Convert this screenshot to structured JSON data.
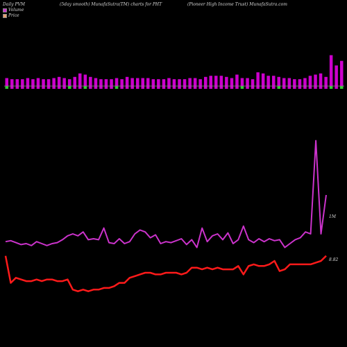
{
  "header": {
    "left": "Daily PVM",
    "center_left": "(5day smooth) MunafaSutra(TM) charts for PHT",
    "center_right": "(Pioneer High Income   Trust) MunafaSutra.com"
  },
  "legend": {
    "volume_label": "Volume",
    "price_label": "Price",
    "volume_color": "#cc33cc",
    "price_color": "#e8a070"
  },
  "chart_data": {
    "type": "line",
    "colors": {
      "volume_line": "#cc33cc",
      "price_line": "#ff1a1a",
      "bar_up": "#cc00cc",
      "bar_down": "#33cc33",
      "baseline": "#888888"
    },
    "right_labels": {
      "volume_tick": "1M",
      "price_tick": "8.82"
    },
    "volume_tick_value": 1000000,
    "price_tick_value": 8.82,
    "bars": {
      "values": [
        7,
        6,
        6,
        6,
        7,
        6,
        7,
        6,
        6,
        7,
        8,
        7,
        6,
        8,
        11,
        10,
        8,
        7,
        6,
        6,
        6,
        7,
        6,
        8,
        7,
        7,
        7,
        7,
        6,
        6,
        6,
        7,
        6,
        6,
        6,
        7,
        7,
        6,
        8,
        9,
        9,
        9,
        8,
        7,
        10,
        7,
        7,
        6,
        12,
        11,
        9,
        9,
        8,
        7,
        7,
        6,
        6,
        7,
        9,
        10,
        11,
        8,
        27,
        18,
        22
      ],
      "down": [
        true,
        false,
        false,
        false,
        false,
        false,
        false,
        false,
        false,
        false,
        false,
        false,
        true,
        false,
        false,
        true,
        false,
        false,
        false,
        false,
        false,
        true,
        false,
        false,
        false,
        false,
        false,
        false,
        false,
        false,
        false,
        false,
        false,
        false,
        false,
        false,
        false,
        false,
        false,
        false,
        false,
        false,
        false,
        false,
        false,
        true,
        false,
        false,
        false,
        false,
        false,
        false,
        true,
        false,
        false,
        false,
        false,
        false,
        false,
        false,
        false,
        false,
        true,
        false,
        true
      ],
      "ylim": [
        -4,
        30
      ]
    },
    "volume": {
      "values": [
        620000,
        630000,
        610000,
        590000,
        600000,
        580000,
        620000,
        600000,
        580000,
        600000,
        610000,
        640000,
        680000,
        700000,
        680000,
        720000,
        640000,
        650000,
        640000,
        760000,
        610000,
        600000,
        650000,
        600000,
        620000,
        700000,
        740000,
        720000,
        660000,
        690000,
        600000,
        620000,
        610000,
        630000,
        650000,
        590000,
        640000,
        560000,
        760000,
        620000,
        680000,
        700000,
        640000,
        710000,
        600000,
        640000,
        780000,
        640000,
        610000,
        650000,
        620000,
        650000,
        630000,
        640000,
        560000,
        600000,
        640000,
        660000,
        720000,
        700000,
        1660000,
        700000,
        1100000
      ],
      "ylim": [
        0,
        2000000
      ]
    },
    "price": {
      "values": [
        8.82,
        8.66,
        8.69,
        8.68,
        8.67,
        8.67,
        8.68,
        8.67,
        8.68,
        8.68,
        8.67,
        8.67,
        8.68,
        8.62,
        8.61,
        8.62,
        8.61,
        8.62,
        8.62,
        8.63,
        8.63,
        8.64,
        8.66,
        8.66,
        8.69,
        8.7,
        8.71,
        8.72,
        8.72,
        8.71,
        8.71,
        8.72,
        8.72,
        8.72,
        8.71,
        8.72,
        8.75,
        8.75,
        8.74,
        8.75,
        8.74,
        8.75,
        8.74,
        8.74,
        8.74,
        8.76,
        8.71,
        8.76,
        8.77,
        8.76,
        8.76,
        8.77,
        8.79,
        8.73,
        8.74,
        8.77,
        8.77,
        8.77,
        8.77,
        8.77,
        8.78,
        8.79,
        8.82
      ],
      "ylim": [
        8.3,
        9.7
      ]
    }
  }
}
